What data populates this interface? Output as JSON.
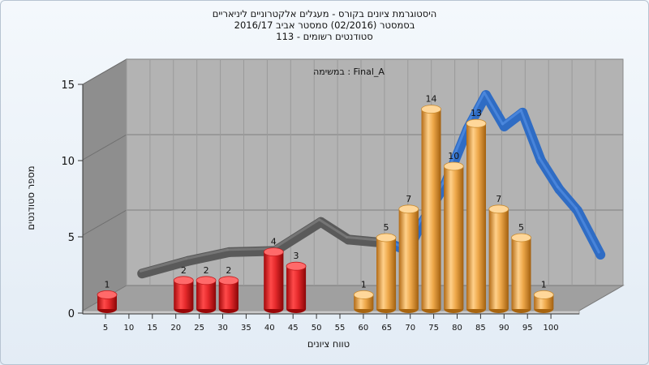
{
  "chart_data": {
    "type": "bar",
    "title": "היסטוגרמת ציונים בקורס - מעגלים אלקטרוניים ליניאריים",
    "subtitle": "בסמסטר  (02/2016)  סמסטר אביב 2016/17",
    "subtitle2": "סטודנטים רשומים - 113",
    "annotation": "במשימה : Final_A",
    "xlabel": "טווח ציונים",
    "ylabel": "מספר סטודנטים",
    "ylim": [
      0,
      15
    ],
    "yticks": [
      "0",
      "5",
      "10",
      "15"
    ],
    "xticks": [
      "5",
      "10",
      "15",
      "20",
      "25",
      "30",
      "35",
      "40",
      "45",
      "50",
      "55",
      "60",
      "65",
      "70",
      "75",
      "80",
      "85",
      "90",
      "95",
      "100"
    ],
    "bars": [
      {
        "x": 5,
        "value": 1,
        "label": "1",
        "series": "fail"
      },
      {
        "x": 22,
        "value": 2,
        "label": "2",
        "series": "fail"
      },
      {
        "x": 27,
        "value": 2,
        "label": "2",
        "series": "fail"
      },
      {
        "x": 32,
        "value": 2,
        "label": "2",
        "series": "fail"
      },
      {
        "x": 42,
        "value": 4,
        "label": "4",
        "series": "fail"
      },
      {
        "x": 47,
        "value": 3,
        "label": "3",
        "series": "fail"
      },
      {
        "x": 62,
        "value": 1,
        "label": "1",
        "series": "pass"
      },
      {
        "x": 67,
        "value": 5,
        "label": "5",
        "series": "pass"
      },
      {
        "x": 72,
        "value": 7,
        "label": "7",
        "series": "pass"
      },
      {
        "x": 77,
        "value": 14,
        "label": "14",
        "series": "pass"
      },
      {
        "x": 82,
        "value": 10,
        "label": "10",
        "series": "pass"
      },
      {
        "x": 87,
        "value": 13,
        "label": "13",
        "series": "pass"
      },
      {
        "x": 92,
        "value": 7,
        "label": "7",
        "series": "pass"
      },
      {
        "x": 97,
        "value": 5,
        "label": "5",
        "series": "pass"
      },
      {
        "x": 102,
        "value": 1,
        "label": "1",
        "series": "pass"
      }
    ],
    "trend": [
      {
        "x": 8,
        "value": 0.5
      },
      {
        "x": 18,
        "value": 1.5
      },
      {
        "x": 27,
        "value": 2.2
      },
      {
        "x": 37,
        "value": 2.3
      },
      {
        "x": 47,
        "value": 4.6
      },
      {
        "x": 53,
        "value": 3.2
      },
      {
        "x": 62,
        "value": 2.9
      },
      {
        "x": 66,
        "value": 2.3
      },
      {
        "x": 69,
        "value": 4.5
      },
      {
        "x": 74,
        "value": 7.5
      },
      {
        "x": 79,
        "value": 12.0
      },
      {
        "x": 83,
        "value": 14.7
      },
      {
        "x": 87,
        "value": 12.2
      },
      {
        "x": 91,
        "value": 13.3
      },
      {
        "x": 95,
        "value": 9.5
      },
      {
        "x": 99,
        "value": 7.2
      },
      {
        "x": 103,
        "value": 5.5
      },
      {
        "x": 108,
        "value": 2.0
      }
    ],
    "colors": {
      "fail": "#e5292b",
      "pass": "#eea84a",
      "trend_low": "#5a5a5a",
      "trend_high": "#2f6cc4",
      "wall": "#b3b3b3",
      "side_wall": "#8e8e8e",
      "floor": "#a0a0a0"
    },
    "legend": "none",
    "grid": true
  }
}
